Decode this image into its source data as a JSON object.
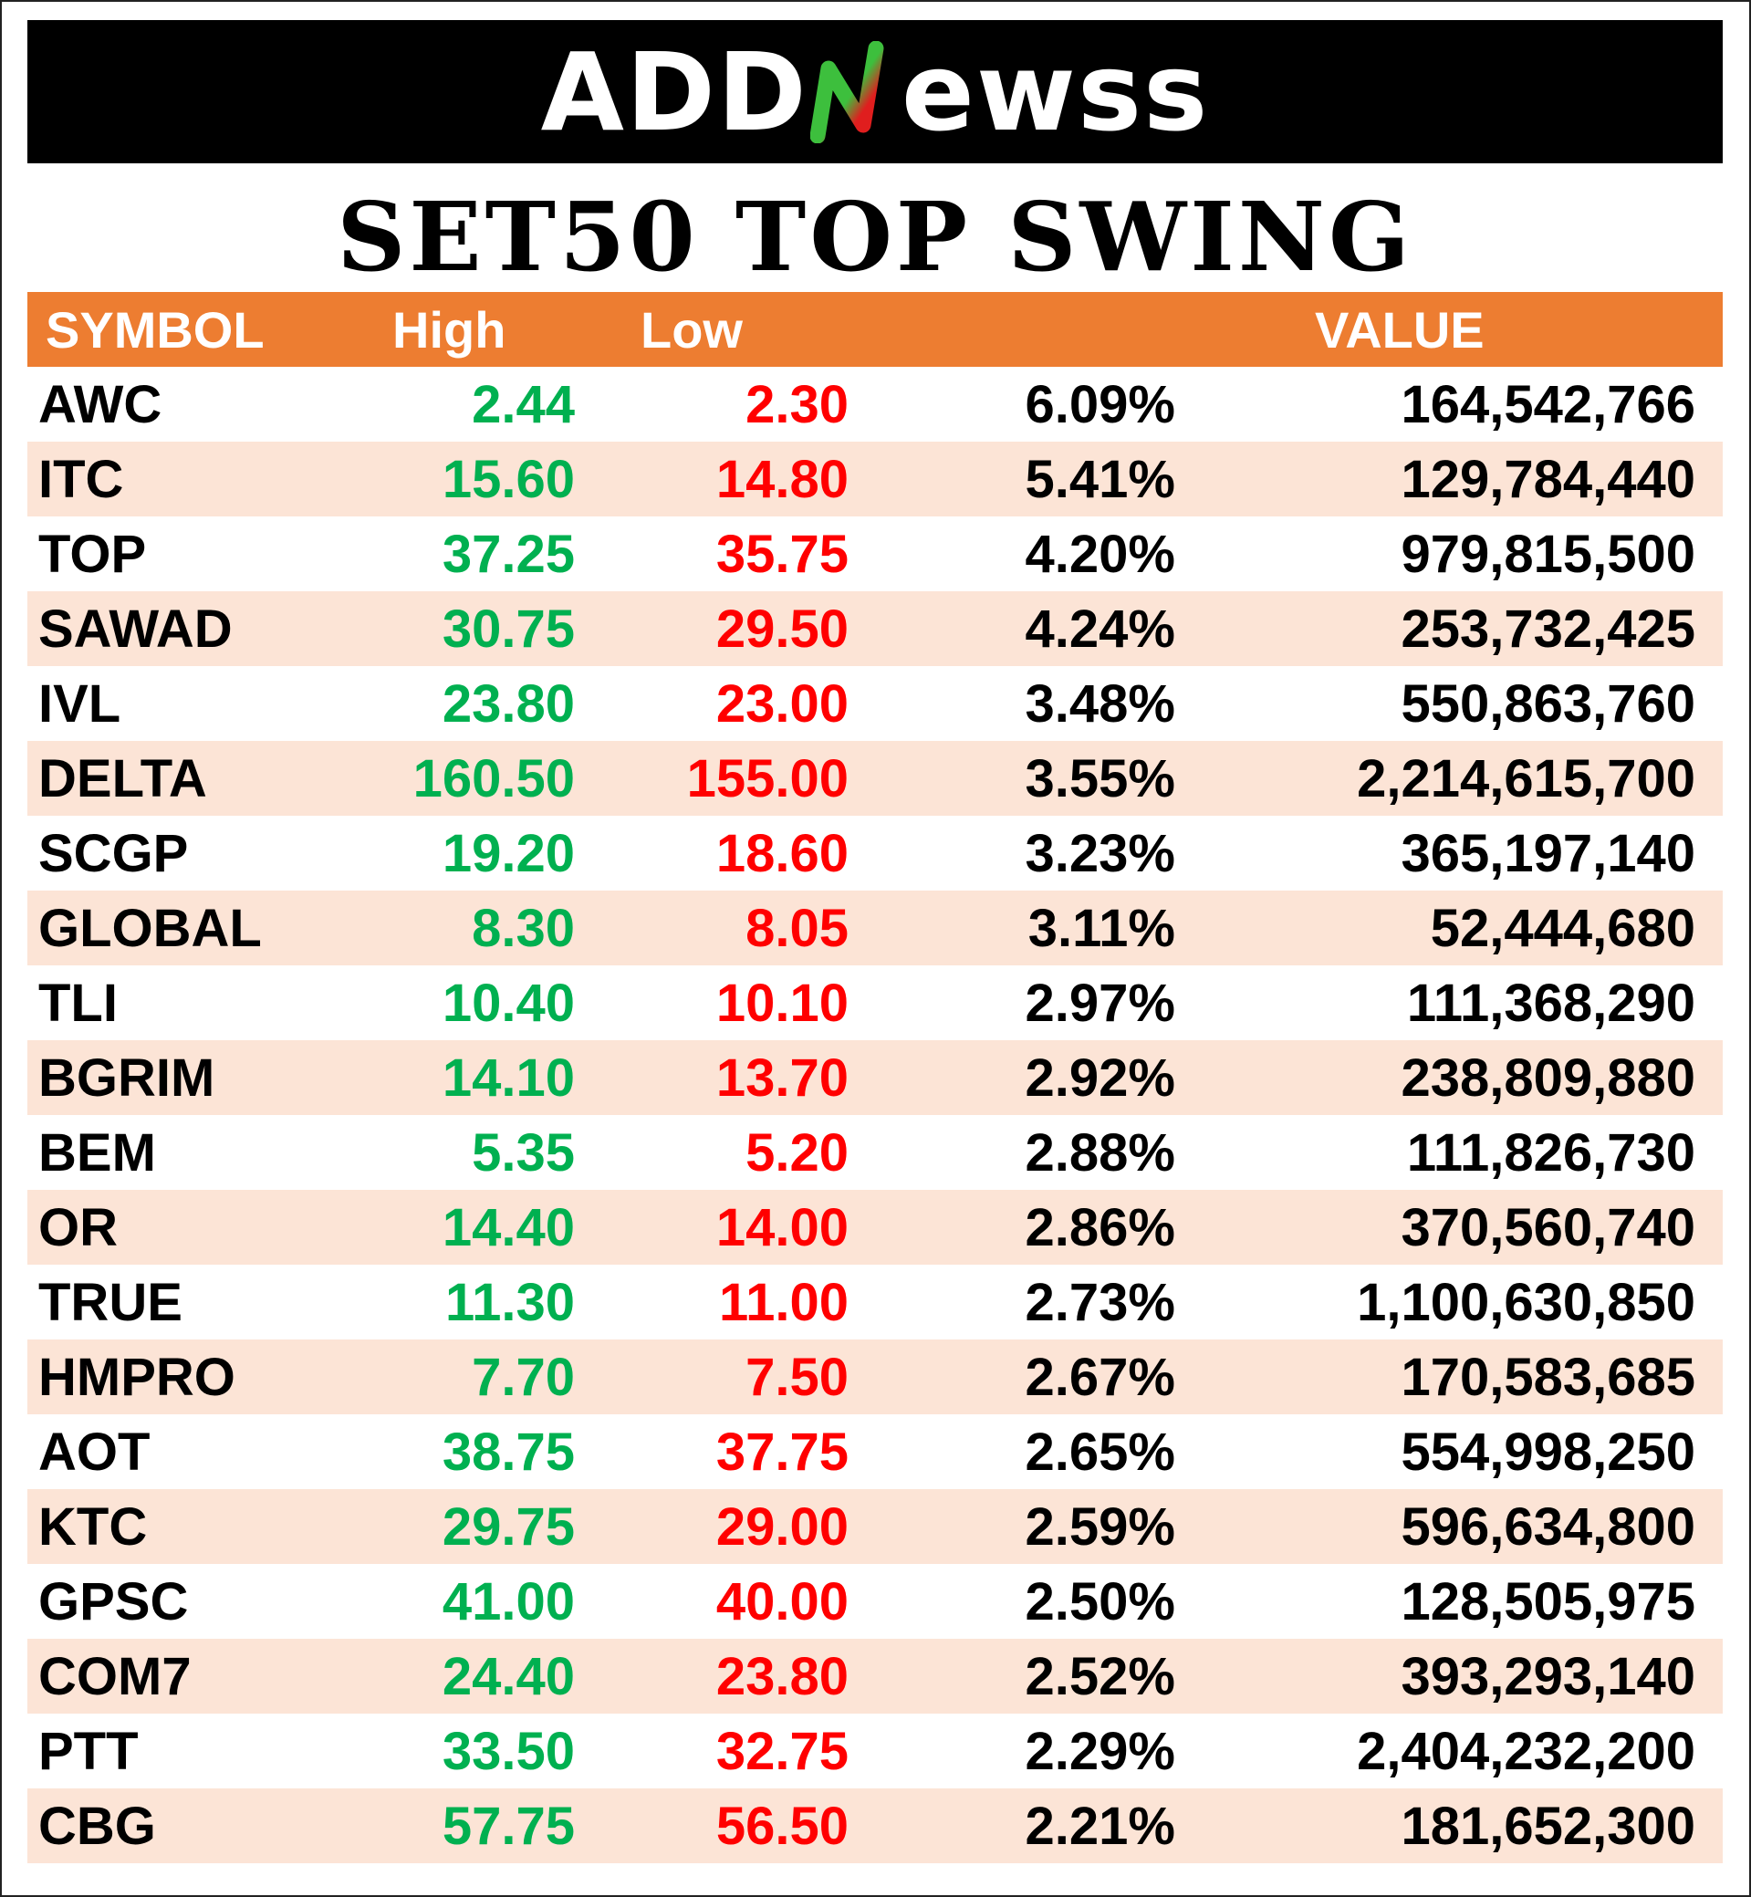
{
  "brand": {
    "logo_prefix": "ADD",
    "logo_suffix": "ewss",
    "logo_n_icon": "n-arrow-icon"
  },
  "title": "SET50 TOP SWING",
  "table": {
    "headers": {
      "symbol": "SYMBOL",
      "high": "High",
      "low": "Low",
      "change": "",
      "value": "VALUE"
    },
    "rows": [
      {
        "symbol": "AWC",
        "high": "2.44",
        "low": "2.30",
        "change": "6.09%",
        "value": "164,542,766"
      },
      {
        "symbol": "ITC",
        "high": "15.60",
        "low": "14.80",
        "change": "5.41%",
        "value": "129,784,440"
      },
      {
        "symbol": "TOP",
        "high": "37.25",
        "low": "35.75",
        "change": "4.20%",
        "value": "979,815,500"
      },
      {
        "symbol": "SAWAD",
        "high": "30.75",
        "low": "29.50",
        "change": "4.24%",
        "value": "253,732,425"
      },
      {
        "symbol": "IVL",
        "high": "23.80",
        "low": "23.00",
        "change": "3.48%",
        "value": "550,863,760"
      },
      {
        "symbol": "DELTA",
        "high": "160.50",
        "low": "155.00",
        "change": "3.55%",
        "value": "2,214,615,700"
      },
      {
        "symbol": "SCGP",
        "high": "19.20",
        "low": "18.60",
        "change": "3.23%",
        "value": "365,197,140"
      },
      {
        "symbol": "GLOBAL",
        "high": "8.30",
        "low": "8.05",
        "change": "3.11%",
        "value": "52,444,680"
      },
      {
        "symbol": "TLI",
        "high": "10.40",
        "low": "10.10",
        "change": "2.97%",
        "value": "111,368,290"
      },
      {
        "symbol": "BGRIM",
        "high": "14.10",
        "low": "13.70",
        "change": "2.92%",
        "value": "238,809,880"
      },
      {
        "symbol": "BEM",
        "high": "5.35",
        "low": "5.20",
        "change": "2.88%",
        "value": "111,826,730"
      },
      {
        "symbol": "OR",
        "high": "14.40",
        "low": "14.00",
        "change": "2.86%",
        "value": "370,560,740"
      },
      {
        "symbol": "TRUE",
        "high": "11.30",
        "low": "11.00",
        "change": "2.73%",
        "value": "1,100,630,850"
      },
      {
        "symbol": "HMPRO",
        "high": "7.70",
        "low": "7.50",
        "change": "2.67%",
        "value": "170,583,685"
      },
      {
        "symbol": "AOT",
        "high": "38.75",
        "low": "37.75",
        "change": "2.65%",
        "value": "554,998,250"
      },
      {
        "symbol": "KTC",
        "high": "29.75",
        "low": "29.00",
        "change": "2.59%",
        "value": "596,634,800"
      },
      {
        "symbol": "GPSC",
        "high": "41.00",
        "low": "40.00",
        "change": "2.50%",
        "value": "128,505,975"
      },
      {
        "symbol": "COM7",
        "high": "24.40",
        "low": "23.80",
        "change": "2.52%",
        "value": "393,293,140"
      },
      {
        "symbol": "PTT",
        "high": "33.50",
        "low": "32.75",
        "change": "2.29%",
        "value": "2,404,232,200"
      },
      {
        "symbol": "CBG",
        "high": "57.75",
        "low": "56.50",
        "change": "2.21%",
        "value": "181,652,300"
      }
    ]
  },
  "colors": {
    "banner": "#000000",
    "header": "#ed7d31",
    "row_alt": "#fce4d6",
    "high": "#00b050",
    "low": "#ff0000",
    "logo_green": "#3dbf3d",
    "logo_red": "#e01e1e"
  }
}
